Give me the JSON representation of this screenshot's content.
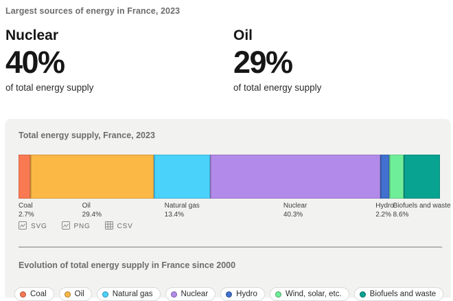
{
  "page": {
    "header": "Largest sources of energy in France, 2023"
  },
  "stats": [
    {
      "label": "Nuclear",
      "value": "40%",
      "caption": "of total energy supply"
    },
    {
      "label": "Oil",
      "value": "29%",
      "caption": "of total energy supply"
    }
  ],
  "card": {
    "title": "Total energy supply, France, 2023",
    "export_buttons": [
      {
        "label": "SVG",
        "icon": "image-icon"
      },
      {
        "label": "PNG",
        "icon": "image-icon"
      },
      {
        "label": "CSV",
        "icon": "table-icon"
      }
    ],
    "section_title": "Evolution of total energy supply in France since 2000"
  },
  "colors": {
    "card_background": "#f2f2f0",
    "muted_heading": "#6c6c6c",
    "coal": "#f97953",
    "oil": "#fcb845",
    "natural_gas": "#4ad2fb",
    "nuclear": "#b28ae9",
    "hydro": "#4170cf",
    "wind_solar": "#6fee99",
    "biofuels": "#08a391"
  },
  "chart_data": {
    "type": "bar",
    "variant": "stacked-horizontal-single-bar",
    "title": "Total energy supply, France, 2023",
    "unit": "%",
    "xlim": [
      0,
      100
    ],
    "legend_position": "below-bar-labels",
    "segments": [
      {
        "name": "Coal",
        "value": 2.7,
        "display": "2.7%",
        "color": "#f97953",
        "label_visible": true
      },
      {
        "name": "Oil",
        "value": 29.4,
        "display": "29.4%",
        "color": "#fcb845",
        "label_visible": true
      },
      {
        "name": "Natural gas",
        "value": 13.4,
        "display": "13.4%",
        "color": "#4ad2fb",
        "label_visible": true
      },
      {
        "name": "Nuclear",
        "value": 40.3,
        "display": "40.3%",
        "color": "#b28ae9",
        "label_visible": true
      },
      {
        "name": "Hydro",
        "value": 2.2,
        "display": "2.2%",
        "color": "#4170cf",
        "label_visible": true
      },
      {
        "name": "Wind, solar, etc.",
        "value": 3.4,
        "display": "",
        "color": "#6fee99",
        "label_visible": false
      },
      {
        "name": "Biofuels and waste",
        "value": 8.6,
        "display": "8.6%",
        "color": "#08a391",
        "label_visible": true
      }
    ]
  },
  "legend": [
    {
      "label": "Coal",
      "color": "#f97953"
    },
    {
      "label": "Oil",
      "color": "#fcb845"
    },
    {
      "label": "Natural gas",
      "color": "#4ad2fb"
    },
    {
      "label": "Nuclear",
      "color": "#b28ae9"
    },
    {
      "label": "Hydro",
      "color": "#4170cf"
    },
    {
      "label": "Wind, solar, etc.",
      "color": "#6fee99"
    },
    {
      "label": "Biofuels and waste",
      "color": "#08a391"
    }
  ]
}
